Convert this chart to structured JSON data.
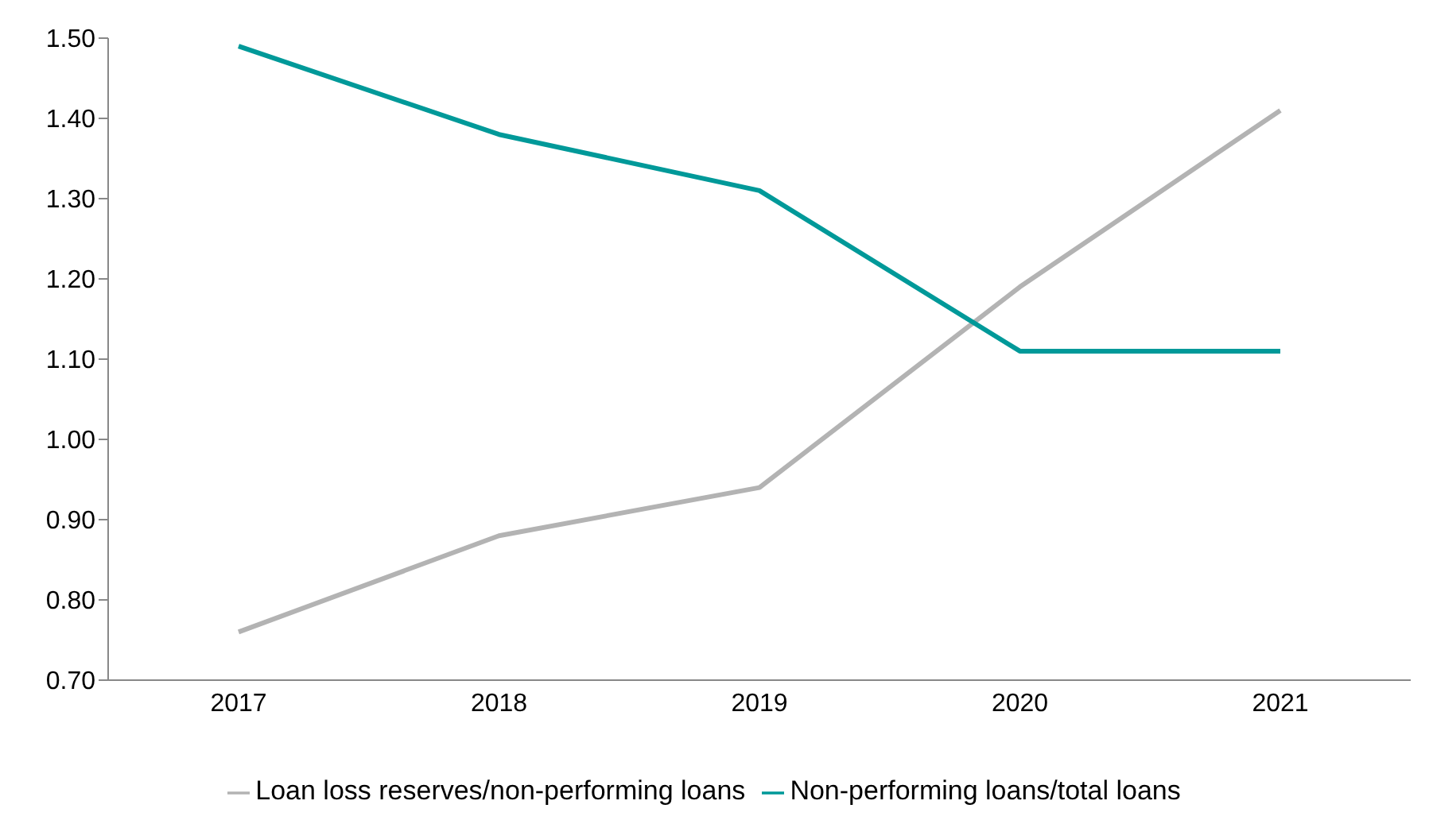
{
  "chart_data": {
    "type": "line",
    "categories": [
      "2017",
      "2018",
      "2019",
      "2020",
      "2021"
    ],
    "series": [
      {
        "name": "Loan loss reserves/non-performing loans",
        "color": "#b3b3b3",
        "values": [
          0.76,
          0.88,
          0.94,
          1.19,
          1.41
        ]
      },
      {
        "name": "Non-performing loans/total loans",
        "color": "#009999",
        "values": [
          1.49,
          1.38,
          1.31,
          1.11,
          1.11
        ]
      }
    ],
    "ylim": [
      0.7,
      1.5
    ],
    "yticks": [
      {
        "value": 0.7,
        "label": "0.70"
      },
      {
        "value": 0.8,
        "label": "0.80"
      },
      {
        "value": 0.9,
        "label": "0.90"
      },
      {
        "value": 1.0,
        "label": "1.00"
      },
      {
        "value": 1.1,
        "label": "1.10"
      },
      {
        "value": 1.2,
        "label": "1.20"
      },
      {
        "value": 1.3,
        "label": "1.30"
      },
      {
        "value": 1.4,
        "label": "1.40"
      },
      {
        "value": 1.5,
        "label": "1.50"
      }
    ],
    "grid": false,
    "legend": "bottom",
    "marker": "none",
    "line_style": "solid"
  }
}
